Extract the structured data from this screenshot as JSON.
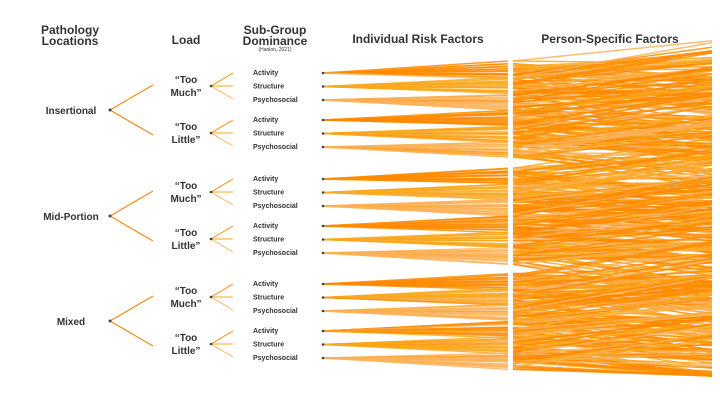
{
  "headers": {
    "pathology": [
      "Pathology",
      "Locations"
    ],
    "load": "Load",
    "subgroup": [
      "Sub-Group",
      "Dominance"
    ],
    "citation": "(Hanlon, 2021)",
    "individual": "Individual Risk Factors",
    "person": "Person-Specific Factors"
  },
  "groups": [
    {
      "label": "Insertional",
      "loads": [
        [
          "“Too",
          "Much”"
        ],
        [
          "“Too",
          "Little”"
        ]
      ]
    },
    {
      "label": "Mid-Portion",
      "loads": [
        [
          "“Too",
          "Much”"
        ],
        [
          "“Too",
          "Little”"
        ]
      ]
    },
    {
      "label": "Mixed",
      "loads": [
        [
          "“Too",
          "Much”"
        ],
        [
          "“Too",
          "Little”"
        ]
      ]
    }
  ],
  "subgroups": [
    "Activity",
    "Structure",
    "Psychosocial"
  ],
  "colors": {
    "activity": "#ff8a00",
    "structure": "#f9a81c",
    "psychosocial": "#fbb25a",
    "branch": "#f08a1a",
    "node": "#444444",
    "text": "#333333"
  }
}
